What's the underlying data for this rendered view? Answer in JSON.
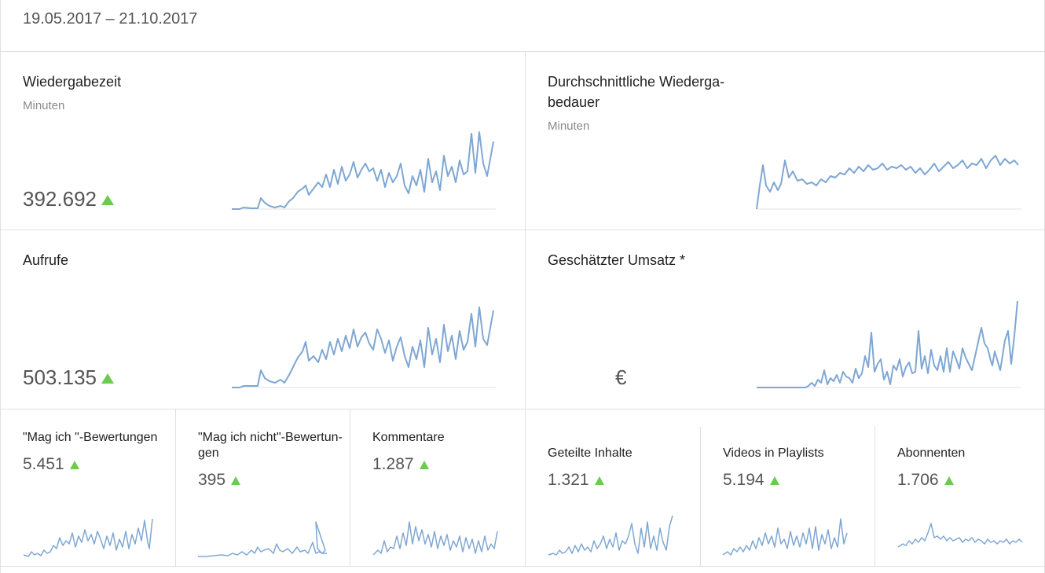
{
  "date_range": "19.05.2017 – 21.10.2017",
  "colors": {
    "sparkline": "#7fa7d3",
    "trend_up": "#6ccb4e",
    "divider": "#e0e0e0"
  },
  "cards": {
    "watch_time": {
      "title": "Wiedergabezeit",
      "subtitle": "Minuten",
      "value": "392.692",
      "trend": "up-triangle-icon"
    },
    "avg_duration": {
      "title_line1": "Durchschnittliche Wiederga-",
      "title_line2": "bedauer",
      "subtitle": "Minuten"
    },
    "views": {
      "title": "Aufrufe",
      "value": "503.135",
      "trend": "up-triangle-icon"
    },
    "revenue": {
      "title": "Geschätzter Umsatz *",
      "value": "€"
    }
  },
  "small_cards": {
    "likes": {
      "title": "\"Mag ich \"-Bewertungen",
      "value": "5.451"
    },
    "dislikes": {
      "title_line1": "\"Mag ich nicht\"-Bewertun-",
      "title_line2": "gen",
      "value": "395"
    },
    "comments": {
      "title": "Kommentare",
      "value": "1.287"
    },
    "shares": {
      "title": "Geteilte Inhalte",
      "value": "1.321"
    },
    "playlists": {
      "title": "Videos in Playlists",
      "value": "5.194"
    },
    "subscribers": {
      "title": "Abonnenten",
      "value": "1.706"
    }
  }
}
